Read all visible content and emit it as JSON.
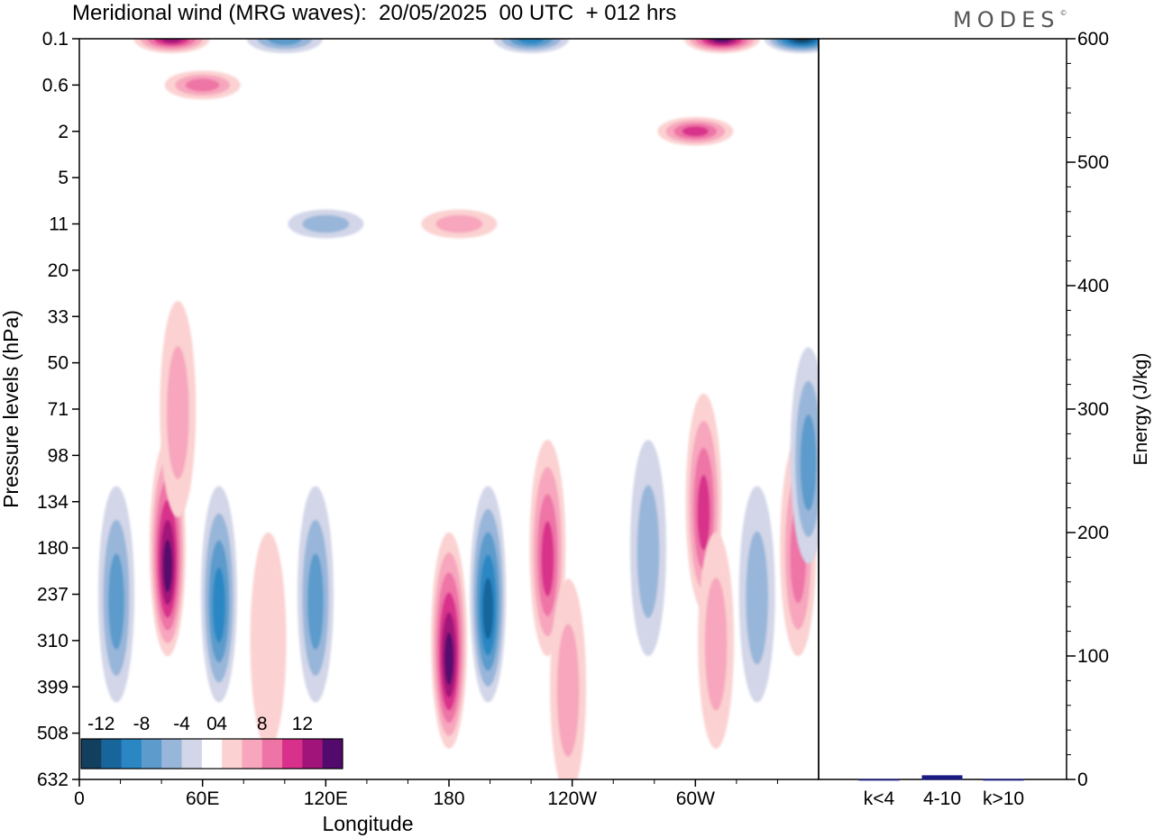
{
  "header": {
    "title": "Meridional wind (MRG waves):  20/05/2025  00 UTC  + 012 hrs",
    "brand": "MODES",
    "brand_mark": "©"
  },
  "chart_data": [
    {
      "type": "heatmap",
      "title": "Meridional wind (MRG waves):  20/05/2025  00 UTC  + 012 hrs",
      "xlabel": "Longitude",
      "ylabel": "Pressure levels (hPa)",
      "x_ticks": [
        "0",
        "60E",
        "120E",
        "180",
        "120W",
        "60W"
      ],
      "x_tick_degrees": [
        0,
        60,
        120,
        180,
        240,
        300
      ],
      "xlim": [
        0,
        360
      ],
      "y_levels": [
        "0.1",
        "0.6",
        "2",
        "5",
        "11",
        "20",
        "33",
        "50",
        "71",
        "98",
        "134",
        "180",
        "237",
        "310",
        "399",
        "508",
        "632"
      ],
      "y_scale": "log-pressure, reversed",
      "colorbar": {
        "labels": [
          "-12",
          "-8",
          "-4",
          "0",
          "4",
          "8",
          "12"
        ],
        "levels": [
          -14,
          -12,
          -10,
          -8,
          -6,
          -4,
          -2,
          2,
          4,
          6,
          8,
          10,
          12,
          14
        ],
        "colors": [
          "#123f5e",
          "#18659b",
          "#2a87c4",
          "#5c9bcc",
          "#98b6d9",
          "#d2d6e8",
          "#ffffff",
          "#fbd2d1",
          "#f7a6bd",
          "#ee74a6",
          "#d8308b",
          "#a11479",
          "#520a6c"
        ],
        "placement": "lower-left"
      },
      "features": [
        {
          "lon": 18,
          "level": "237",
          "value": -6
        },
        {
          "lon": 43,
          "level": "180",
          "value": 12
        },
        {
          "lon": 48,
          "level": "71",
          "value": 4
        },
        {
          "lon": 68,
          "level": "237",
          "value": -8
        },
        {
          "lon": 92,
          "level": "310",
          "value": 2
        },
        {
          "lon": 115,
          "level": "237",
          "value": -6
        },
        {
          "lon": 180,
          "level": "310",
          "value": 12
        },
        {
          "lon": 199,
          "level": "237",
          "value": -10
        },
        {
          "lon": 228,
          "level": "180",
          "value": 8
        },
        {
          "lon": 238,
          "level": "399",
          "value": 4
        },
        {
          "lon": 277,
          "level": "180",
          "value": -4
        },
        {
          "lon": 304,
          "level": "134",
          "value": 8
        },
        {
          "lon": 310,
          "level": "310",
          "value": 4
        },
        {
          "lon": 330,
          "level": "237",
          "value": -4
        },
        {
          "lon": 350,
          "level": "180",
          "value": 6
        },
        {
          "lon": 355,
          "level": "98",
          "value": -6
        },
        {
          "lon": 45,
          "level": "0.1",
          "value": 10
        },
        {
          "lon": 100,
          "level": "0.1",
          "value": -6
        },
        {
          "lon": 220,
          "level": "0.1",
          "value": -8
        },
        {
          "lon": 313,
          "level": "0.1",
          "value": 12
        },
        {
          "lon": 352,
          "level": "0.1",
          "value": -12
        },
        {
          "lon": 300,
          "level": "2",
          "value": 8
        },
        {
          "lon": 60,
          "level": "0.6",
          "value": 6
        },
        {
          "lon": 185,
          "level": "11",
          "value": 4
        },
        {
          "lon": 120,
          "level": "11",
          "value": -4
        }
      ]
    },
    {
      "type": "bar",
      "ylabel": "Energy (J/kg)",
      "categories": [
        "k<4",
        "4-10",
        "k>10"
      ],
      "values": [
        0,
        3,
        0
      ],
      "ylim": [
        0,
        600
      ],
      "y_ticks": [
        "0",
        "100",
        "200",
        "300",
        "400",
        "500",
        "600"
      ],
      "bar_color": "#1a1a80"
    }
  ]
}
